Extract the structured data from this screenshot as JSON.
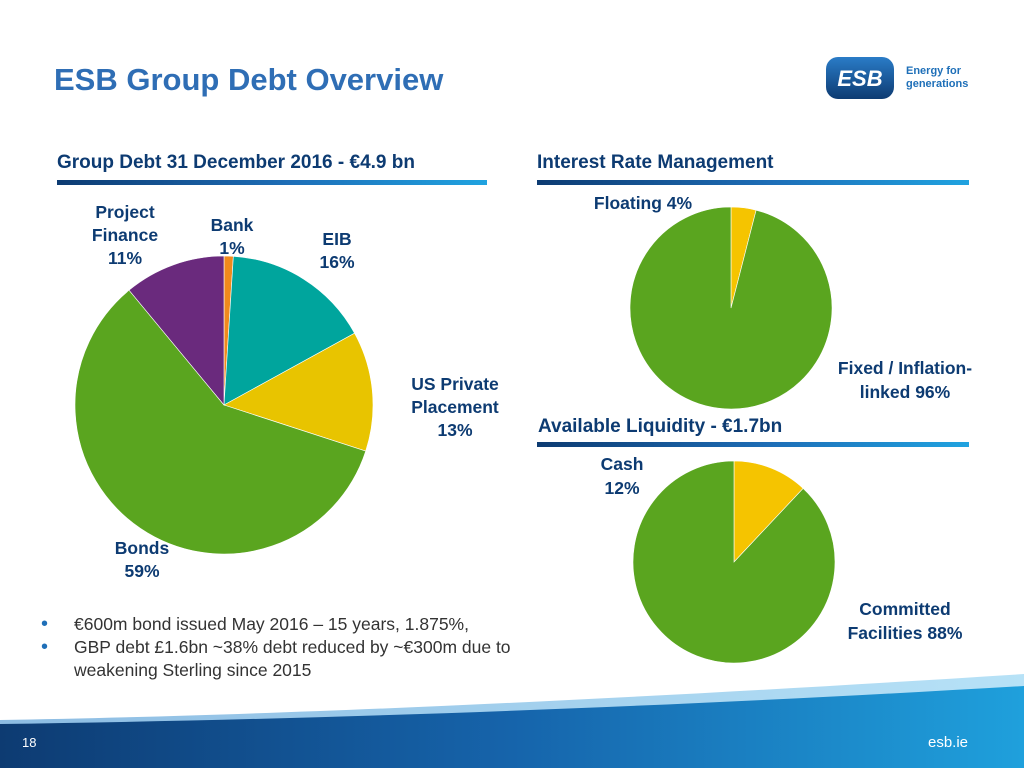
{
  "page": {
    "title": "ESB Group Debt Overview",
    "page_number": "18",
    "website": "esb.ie"
  },
  "logo": {
    "mark": "ESB",
    "tagline_line1": "Energy for",
    "tagline_line2": "generations"
  },
  "bullets": [
    "€600m bond issued May 2016 – 15 years, 1.875%,",
    "GBP debt £1.6bn ~38% debt reduced by ~€300m due to weakening Sterling since 2015"
  ],
  "colors": {
    "accent_blue": "#2f6eb5",
    "navy": "#0d3b72",
    "green": "#5aa51f",
    "yellow": "#f0c400",
    "teal": "#00a59d",
    "purple": "#6a2a7d",
    "orange": "#f08a1c"
  },
  "chart_data": [
    {
      "type": "pie",
      "title": "Group Debt 31 December 2016 - €4.9 bn",
      "labels": [
        "Bank",
        "EIB",
        "US Private Placement",
        "Bonds",
        "Project Finance"
      ],
      "label_lines": [
        [
          "Bank",
          "1%"
        ],
        [
          "EIB",
          "16%"
        ],
        [
          "US Private",
          "Placement",
          "13%"
        ],
        [
          "Bonds",
          "59%"
        ],
        [
          "Project",
          "Finance",
          "11%"
        ]
      ],
      "values": [
        1,
        16,
        13,
        59,
        11
      ],
      "colors": [
        "#f08a1c",
        "#00a59d",
        "#e8c400",
        "#5aa51f",
        "#6a2a7d"
      ]
    },
    {
      "type": "pie",
      "title": "Interest Rate Management",
      "labels": [
        "Floating",
        "Fixed / Inflation-linked"
      ],
      "label_lines": [
        [
          "Floating 4%"
        ],
        [
          "Fixed / Inflation-",
          "linked 96%"
        ]
      ],
      "values": [
        4,
        96
      ],
      "colors": [
        "#f5c400",
        "#5aa51f"
      ]
    },
    {
      "type": "pie",
      "title": "Available Liquidity - €1.7bn",
      "labels": [
        "Cash",
        "Committed Facilities"
      ],
      "label_lines": [
        [
          "Cash",
          "12%"
        ],
        [
          "Committed",
          "Facilities 88%"
        ]
      ],
      "values": [
        12,
        88
      ],
      "colors": [
        "#f5c400",
        "#5aa51f"
      ]
    }
  ]
}
